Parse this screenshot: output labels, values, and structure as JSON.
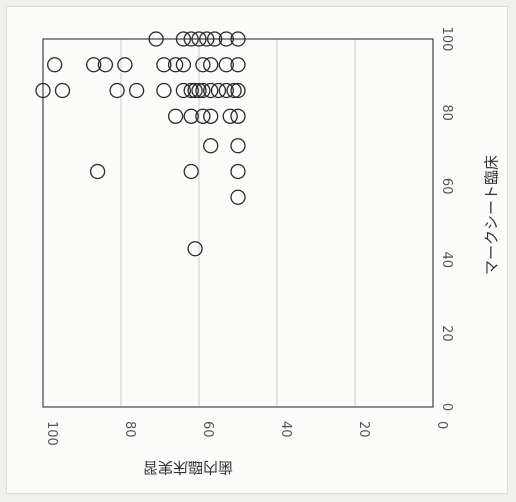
{
  "chart_data": {
    "type": "scatter",
    "title": "",
    "xlabel": "歯内臨床実習",
    "ylabel": "マークシート臨床",
    "xlim": [
      0,
      100
    ],
    "ylim": [
      0,
      100
    ],
    "x_ticks": [
      100,
      80,
      60,
      40,
      20,
      0
    ],
    "y_ticks": [
      0,
      20,
      40,
      60,
      80,
      100
    ],
    "x_axis_reversed": true,
    "y_axis_side": "right",
    "x_label_rotated": true,
    "grid": "vertical",
    "marker": "open-circle",
    "colors": {
      "marker": "#2a2a2a",
      "grid": "#cfcfcf",
      "axis": "#444444"
    },
    "points": [
      {
        "x": 100,
        "y": 86
      },
      {
        "x": 97,
        "y": 93
      },
      {
        "x": 95,
        "y": 86
      },
      {
        "x": 87,
        "y": 93
      },
      {
        "x": 84,
        "y": 93
      },
      {
        "x": 81,
        "y": 86
      },
      {
        "x": 79,
        "y": 93
      },
      {
        "x": 76,
        "y": 86
      },
      {
        "x": 86,
        "y": 64
      },
      {
        "x": 71,
        "y": 100
      },
      {
        "x": 64,
        "y": 100
      },
      {
        "x": 62,
        "y": 100
      },
      {
        "x": 60,
        "y": 100
      },
      {
        "x": 58,
        "y": 100
      },
      {
        "x": 56,
        "y": 100
      },
      {
        "x": 53,
        "y": 100
      },
      {
        "x": 50,
        "y": 100
      },
      {
        "x": 69,
        "y": 93
      },
      {
        "x": 66,
        "y": 93
      },
      {
        "x": 64,
        "y": 93
      },
      {
        "x": 59,
        "y": 93
      },
      {
        "x": 57,
        "y": 93
      },
      {
        "x": 53,
        "y": 93
      },
      {
        "x": 50,
        "y": 93
      },
      {
        "x": 69,
        "y": 86
      },
      {
        "x": 64,
        "y": 86
      },
      {
        "x": 62,
        "y": 86
      },
      {
        "x": 61,
        "y": 86
      },
      {
        "x": 60,
        "y": 86
      },
      {
        "x": 59,
        "y": 86
      },
      {
        "x": 57,
        "y": 86
      },
      {
        "x": 55,
        "y": 86
      },
      {
        "x": 53,
        "y": 86
      },
      {
        "x": 51,
        "y": 86
      },
      {
        "x": 50,
        "y": 86
      },
      {
        "x": 66,
        "y": 79
      },
      {
        "x": 62,
        "y": 79
      },
      {
        "x": 59,
        "y": 79
      },
      {
        "x": 57,
        "y": 79
      },
      {
        "x": 52,
        "y": 79
      },
      {
        "x": 50,
        "y": 79
      },
      {
        "x": 57,
        "y": 71
      },
      {
        "x": 50,
        "y": 71
      },
      {
        "x": 62,
        "y": 64
      },
      {
        "x": 50,
        "y": 64
      },
      {
        "x": 50,
        "y": 57
      },
      {
        "x": 61,
        "y": 43
      }
    ]
  }
}
